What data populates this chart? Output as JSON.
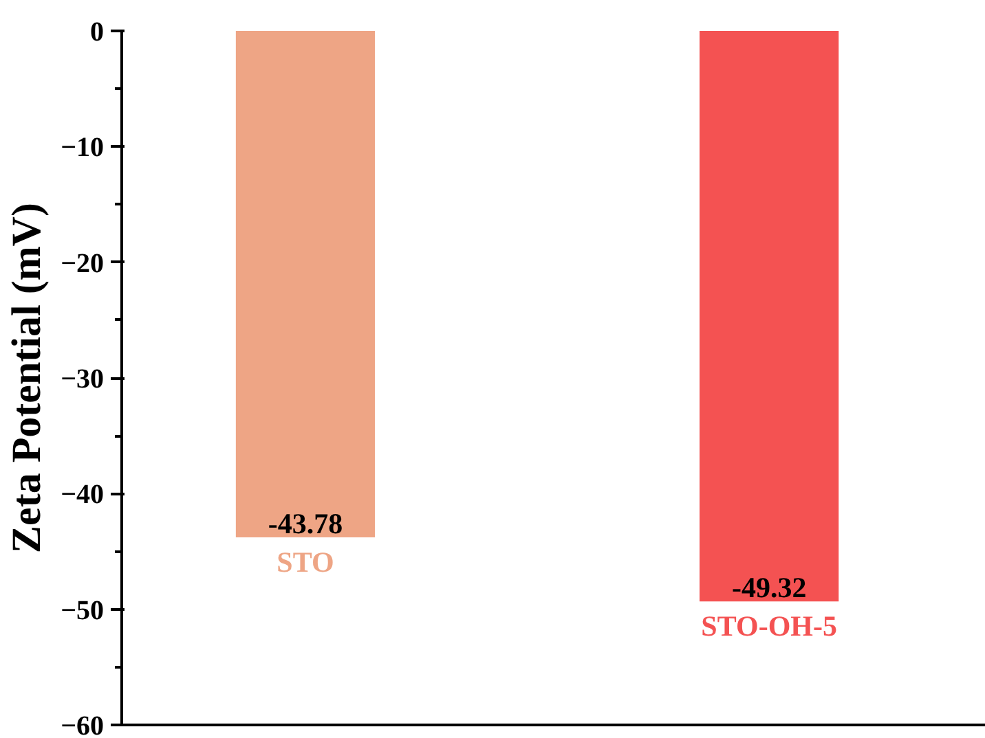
{
  "chart_data": {
    "type": "bar",
    "categories": [
      "STO",
      "STO-OH-5"
    ],
    "values": [
      -43.78,
      -49.32
    ],
    "colors": [
      "#eea585",
      "#f45252"
    ],
    "ylabel": "Zeta Potential (mV)",
    "ylim": [
      -60,
      0
    ],
    "yticks": [
      -60,
      {
        "value": -55,
        "label": null
      },
      -50,
      {
        "value": -45,
        "label": null
      },
      -40,
      {
        "value": -35,
        "label": null
      },
      -30,
      {
        "value": -25,
        "label": null
      },
      -20,
      {
        "value": -15,
        "label": null
      },
      -10,
      {
        "value": -5,
        "label": null
      },
      0
    ],
    "data_labels": true,
    "grid": false
  }
}
